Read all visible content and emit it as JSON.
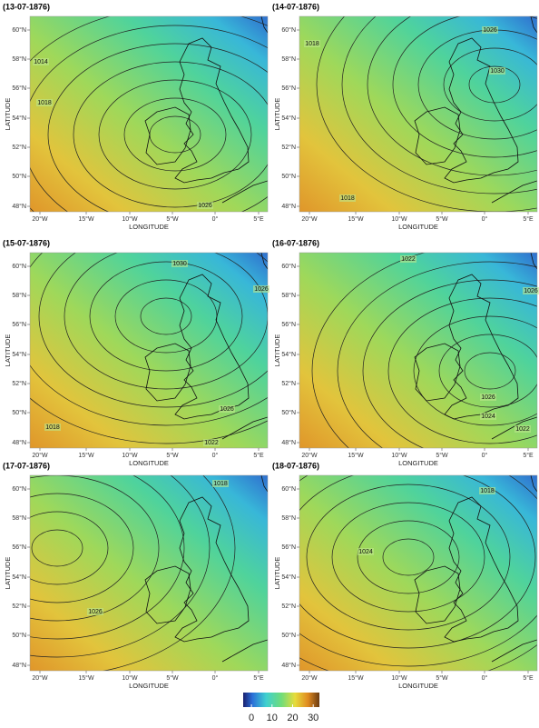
{
  "panels": [
    {
      "title": "(13-07-1876)",
      "contour_labels": [
        1014,
        1018,
        1026
      ]
    },
    {
      "title": "(14-07-1876)",
      "contour_labels": [
        1018,
        1026,
        1030,
        1018
      ]
    },
    {
      "title": "(15-07-1876)",
      "contour_labels": [
        1030,
        1026,
        1026,
        1018,
        1022
      ]
    },
    {
      "title": "(16-07-1876)",
      "contour_labels": [
        1022,
        1026,
        1026,
        1024,
        1022
      ]
    },
    {
      "title": "(17-07-1876)",
      "contour_labels": [
        1018,
        1026
      ]
    },
    {
      "title": "(18-07-1876)",
      "contour_labels": [
        1018,
        1024
      ]
    }
  ],
  "x_axis": {
    "label": "LONGITUDE",
    "ticks": [
      "20°W",
      "15°W",
      "10°W",
      "5°W",
      "0°",
      "5°E"
    ]
  },
  "y_axis": {
    "label": "LATITUDE",
    "ticks": [
      "60°N",
      "58°N",
      "56°N",
      "54°N",
      "52°N",
      "50°N",
      "48°N"
    ]
  },
  "colorbar": {
    "ticks": [
      0,
      10,
      20,
      30
    ],
    "lim": [
      -4,
      33
    ]
  }
}
